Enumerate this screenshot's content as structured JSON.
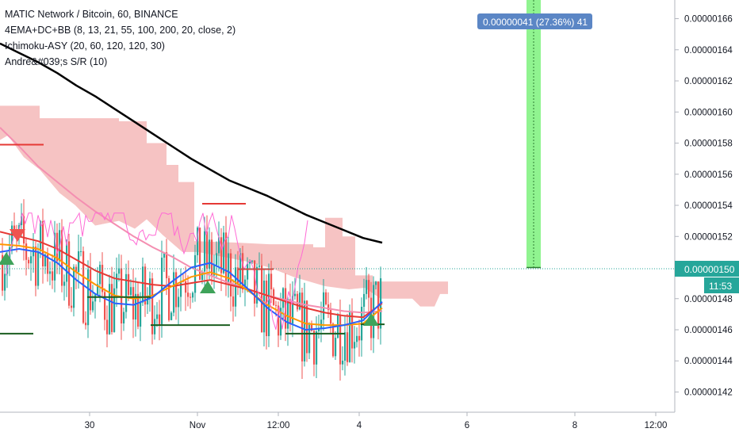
{
  "header": {
    "symbol_line": "MATIC Network / Bitcoin, 60, BINANCE",
    "indicator_1": "4EMA+DC+BB (8, 13, 21, 55, 100, 200, 20, close, 2)",
    "indicator_2": "Ichimoku-ASY (20, 60, 120, 120, 30)",
    "indicator_3": "Andre&#039;s S/R (10)"
  },
  "measure_tag": "0.00000041 (27.36%) 41",
  "price_tags": {
    "last_price": "0.00000150",
    "countdown": "11:53"
  },
  "colors": {
    "background": "#ffffff",
    "up": "#26a69a",
    "down": "#ef5350",
    "cloud": "#f4b4b4",
    "measure_zone": "#7cf27c",
    "price_tag": "#26a69a",
    "measure_tag": "#5b86c5",
    "ema200": "#000000",
    "ema_fast": "#2962ff",
    "ema_mid": "#ff9800",
    "ema_slow": "#e53935",
    "bb_line": "#f48fb1",
    "lagging": "#ff6ad5"
  },
  "chart_data": {
    "type": "candlestick",
    "title": "MATIC Network / Bitcoin, 60, BINANCE",
    "y_axis": {
      "ticks": [
        "0.00000142",
        "0.00000144",
        "0.00000146",
        "0.00000148",
        "0.00000150",
        "0.00000152",
        "0.00000154",
        "0.00000156",
        "0.00000158",
        "0.00000160",
        "0.00000162",
        "0.00000164",
        "0.00000166"
      ],
      "ylim": [
        1.407e-06,
        1.672e-06
      ]
    },
    "x_axis": {
      "ticks": [
        "30",
        "Nov",
        "12:00",
        "4",
        "6",
        "8",
        "12:00"
      ]
    },
    "last_price": 1.5e-06,
    "measure": {
      "label": "0.00000041 (27.36%) 41",
      "from": 1.5e-06,
      "to": 1.672e-06
    },
    "series": [
      {
        "name": "EMA 200",
        "color": "#000000",
        "values": [
          1.644,
          1.638,
          1.632,
          1.625,
          1.617,
          1.61,
          1.602,
          1.594,
          1.586,
          1.578,
          1.57,
          1.563,
          1.556,
          1.551,
          1.546,
          1.54,
          1.534,
          1.529,
          1.524,
          1.519,
          1.516
        ]
      },
      {
        "name": "BB basis",
        "color": "#f48fb1",
        "values": [
          1.59,
          1.578,
          1.565,
          1.555,
          1.545,
          1.536,
          1.528,
          1.52,
          1.513,
          1.507,
          1.5,
          1.495,
          1.49,
          1.486,
          1.482,
          1.479,
          1.476,
          1.474,
          1.472,
          1.471,
          1.472
        ]
      },
      {
        "name": "EMA slow",
        "color": "#e53935",
        "values": [
          1.523,
          1.52,
          1.517,
          1.512,
          1.505,
          1.498,
          1.493,
          1.491,
          1.489,
          1.488,
          1.49,
          1.492,
          1.489,
          1.486,
          1.482,
          1.478,
          1.474,
          1.471,
          1.469,
          1.468,
          1.477
        ]
      },
      {
        "name": "EMA mid",
        "color": "#ff9800",
        "values": [
          1.515,
          1.514,
          1.512,
          1.506,
          1.497,
          1.489,
          1.482,
          1.48,
          1.482,
          1.488,
          1.494,
          1.497,
          1.493,
          1.485,
          1.476,
          1.469,
          1.464,
          1.463,
          1.463,
          1.464,
          1.474
        ]
      },
      {
        "name": "EMA fast",
        "color": "#2962ff",
        "values": [
          1.51,
          1.512,
          1.51,
          1.503,
          1.492,
          1.483,
          1.477,
          1.476,
          1.481,
          1.491,
          1.5,
          1.503,
          1.497,
          1.486,
          1.474,
          1.465,
          1.46,
          1.461,
          1.463,
          1.466,
          1.478
        ]
      }
    ]
  }
}
